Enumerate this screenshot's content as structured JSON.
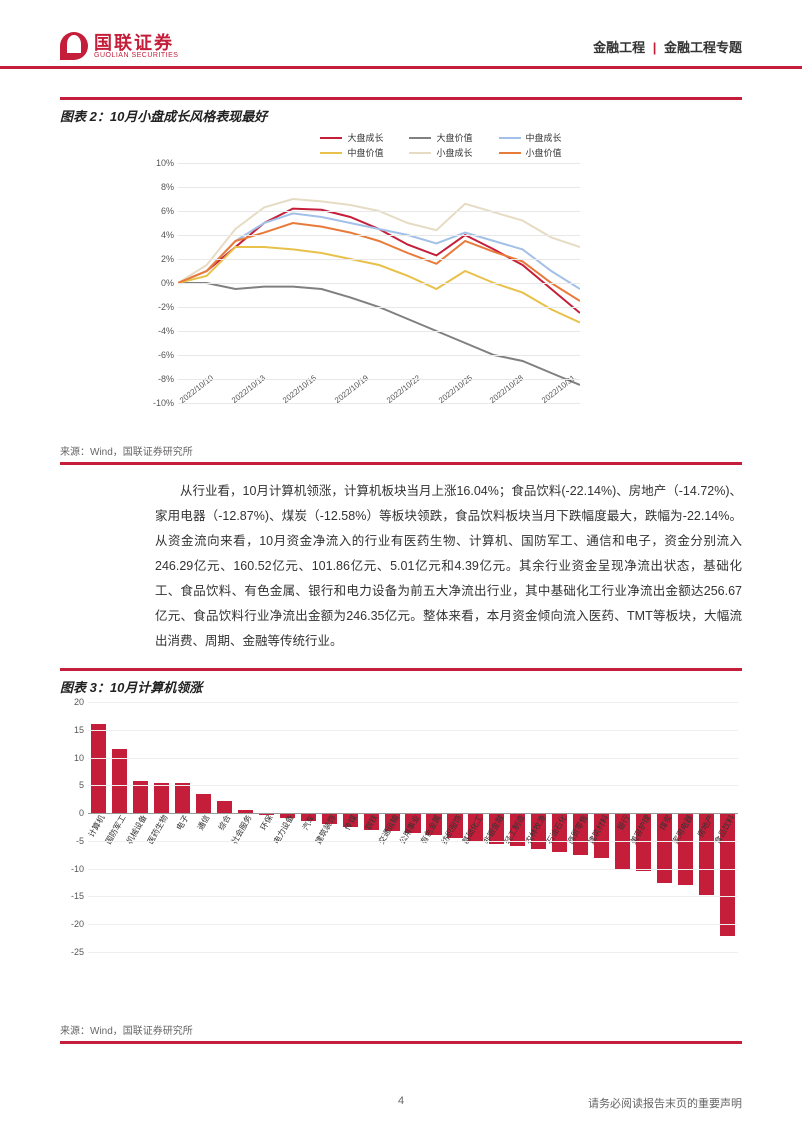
{
  "header": {
    "logo_cn": "国联证券",
    "logo_en": "GUOLIAN SECURITIES",
    "category_left": "金融工程",
    "category_right": "金融工程专题",
    "sep": "|"
  },
  "chart2": {
    "title": "图表 2：10月小盘成长风格表现最好",
    "type": "line",
    "yaxis": {
      "min": -10,
      "max": 10,
      "step": 2,
      "suffix": "%"
    },
    "grid_color": "#e8e8e8",
    "bg_color": "#ffffff",
    "x_labels": [
      "2022/10/10",
      "2022/10/13",
      "2022/10/16",
      "2022/10/19",
      "2022/10/22",
      "2022/10/25",
      "2022/10/28",
      "2022/10/31"
    ],
    "series": [
      {
        "name": "大盘成长",
        "color": "#c41e3a",
        "width": 2,
        "values": [
          0,
          1,
          3,
          5,
          6.2,
          6.1,
          5.5,
          4.5,
          3.2,
          2.3,
          4.0,
          2.8,
          1.5,
          -0.5,
          -2.5
        ]
      },
      {
        "name": "大盘价值",
        "color": "#808080",
        "width": 2,
        "values": [
          0,
          0,
          -0.5,
          -0.3,
          -0.3,
          -0.5,
          -1.2,
          -2,
          -3,
          -4,
          -5,
          -6,
          -6.5,
          -7.5,
          -8.5
        ]
      },
      {
        "name": "中盘成长",
        "color": "#a3c0e8",
        "width": 2,
        "values": [
          0,
          1,
          3.5,
          5,
          5.8,
          5.5,
          5,
          4.5,
          4,
          3.3,
          4.2,
          3.5,
          2.8,
          1,
          -0.5
        ]
      },
      {
        "name": "中盘价值",
        "color": "#e8c14a",
        "width": 2,
        "values": [
          0,
          0.6,
          3,
          3,
          2.8,
          2.5,
          2,
          1.5,
          0.6,
          -0.5,
          1,
          0,
          -0.8,
          -2.2,
          -3.3
        ]
      },
      {
        "name": "小盘成长",
        "color": "#e6dcc4",
        "width": 2,
        "values": [
          0,
          1.5,
          4.5,
          6.3,
          7,
          6.8,
          6.5,
          6,
          5,
          4.4,
          6.6,
          5.9,
          5.2,
          3.8,
          3.0
        ]
      },
      {
        "name": "小盘价值",
        "color": "#e87a3a",
        "width": 2,
        "values": [
          0,
          1,
          3.5,
          4.2,
          5,
          4.7,
          4.2,
          3.5,
          2.5,
          1.6,
          3.5,
          2.6,
          1.8,
          0,
          -1.5
        ]
      }
    ],
    "source": "来源：Wind，国联证券研究所"
  },
  "body_text": "从行业看，10月计算机领涨，计算机板块当月上涨16.04%；食品饮料(-22.14%)、房地产（-14.72%)、家用电器（-12.87%)、煤炭（-12.58%）等板块领跌，食品饮料板块当月下跌幅度最大，跌幅为-22.14%。从资金流向来看，10月资金净流入的行业有医药生物、计算机、国防军工、通信和电子，资金分别流入246.29亿元、160.52亿元、101.86亿元、5.01亿元和4.39亿元。其余行业资金呈现净流出状态，基础化工、食品饮料、有色金属、银行和电力设备为前五大净流出行业，其中基础化工行业净流出金额达256.67亿元、食品饮料行业净流出金额为246.35亿元。整体来看，本月资金倾向流入医药、TMT等板块，大幅流出消费、周期、金融等传统行业。",
  "chart3": {
    "title": "图表 3：10月计算机领涨",
    "type": "bar",
    "yaxis": {
      "min": -25,
      "max": 20,
      "step": 5
    },
    "bar_color": "#c41e3a",
    "grid_color": "#efefef",
    "bg_color": "#ffffff",
    "bar_width_ratio": 0.72,
    "data": [
      {
        "label": "计算机",
        "value": 16.0
      },
      {
        "label": "国防军工",
        "value": 11.5
      },
      {
        "label": "机械设备",
        "value": 5.7
      },
      {
        "label": "医药生物",
        "value": 5.5
      },
      {
        "label": "电子",
        "value": 5.4
      },
      {
        "label": "通信",
        "value": 3.5
      },
      {
        "label": "综合",
        "value": 2.2
      },
      {
        "label": "社会服务",
        "value": 0.5
      },
      {
        "label": "环保",
        "value": -0.3
      },
      {
        "label": "电力设备",
        "value": -0.8
      },
      {
        "label": "汽车",
        "value": -1.5
      },
      {
        "label": "建筑装饰",
        "value": -2.0
      },
      {
        "label": "传媒",
        "value": -2.5
      },
      {
        "label": "钢铁",
        "value": -3.0
      },
      {
        "label": "交通运输",
        "value": -3.3
      },
      {
        "label": "公用事业",
        "value": -3.6
      },
      {
        "label": "有色金属",
        "value": -4.0
      },
      {
        "label": "纺织服饰",
        "value": -4.5
      },
      {
        "label": "基础化工",
        "value": -5.0
      },
      {
        "label": "非银金融",
        "value": -5.5
      },
      {
        "label": "轻工制造",
        "value": -6.0
      },
      {
        "label": "农林牧渔",
        "value": -6.5
      },
      {
        "label": "石油石化",
        "value": -7.0
      },
      {
        "label": "商贸零售",
        "value": -7.5
      },
      {
        "label": "建筑材料",
        "value": -8.0
      },
      {
        "label": "银行",
        "value": -10.0
      },
      {
        "label": "美容护理",
        "value": -10.5
      },
      {
        "label": "煤炭",
        "value": -12.6
      },
      {
        "label": "家用电器",
        "value": -12.9
      },
      {
        "label": "房地产",
        "value": -14.7
      },
      {
        "label": "食品饮料",
        "value": -22.1
      }
    ],
    "source": "来源：Wind，国联证券研究所"
  },
  "footer": {
    "page": "4",
    "disclaimer": "请务必阅读报告末页的重要声明"
  }
}
